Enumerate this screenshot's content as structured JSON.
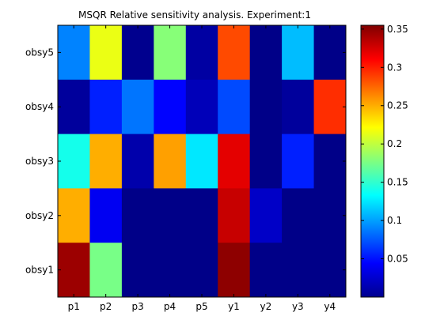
{
  "chart_data": {
    "type": "heatmap",
    "title": "MSQR Relative sensitivity analysis. Experiment:1",
    "xlabel": "",
    "ylabel": "",
    "x_categories": [
      "p1",
      "p2",
      "p3",
      "p4",
      "p5",
      "y1",
      "y2",
      "y3",
      "y4"
    ],
    "y_categories": [
      "obsy5",
      "obsy4",
      "obsy3",
      "obsy2",
      "obsy1"
    ],
    "values": [
      [
        0.09,
        0.215,
        0.005,
        0.18,
        0.012,
        0.285,
        0.003,
        0.11,
        0.003
      ],
      [
        0.01,
        0.055,
        0.085,
        0.045,
        0.02,
        0.07,
        0.003,
        0.01,
        0.295
      ],
      [
        0.14,
        0.25,
        0.015,
        0.255,
        0.125,
        0.32,
        0.003,
        0.055,
        0.003
      ],
      [
        0.25,
        0.04,
        0.003,
        0.003,
        0.003,
        0.33,
        0.025,
        0.003,
        0.003
      ],
      [
        0.345,
        0.175,
        0.003,
        0.003,
        0.003,
        0.35,
        0.003,
        0.003,
        0.003
      ]
    ],
    "colorbar": {
      "colormap": "jet",
      "range": [
        0,
        0.355
      ],
      "ticks": [
        0.05,
        0.1,
        0.15,
        0.2,
        0.25,
        0.3,
        0.35
      ],
      "tick_labels": [
        "0.05",
        "0.1",
        "0.15",
        "0.2",
        "0.25",
        "0.3",
        "0.35"
      ]
    },
    "grid": false
  }
}
